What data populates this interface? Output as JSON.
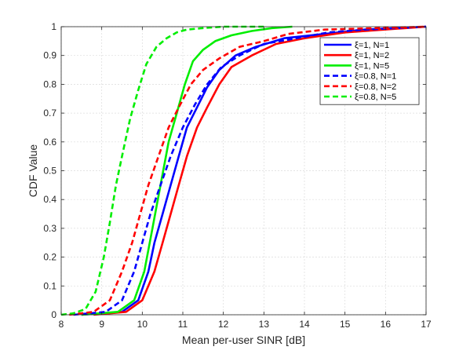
{
  "chart_data": {
    "type": "line",
    "title": "",
    "xlabel": "Mean per-user SINR [dB]",
    "ylabel": "CDF Value",
    "xlim": [
      8,
      17
    ],
    "ylim": [
      0,
      1
    ],
    "xticks": [
      "8",
      "9",
      "10",
      "11",
      "12",
      "13",
      "14",
      "15",
      "16",
      "17"
    ],
    "yticks": [
      "0",
      "0.1",
      "0.2",
      "0.3",
      "0.4",
      "0.5",
      "0.6",
      "0.7",
      "0.8",
      "0.9",
      "1"
    ],
    "grid": true,
    "legend_position": "top-right",
    "series": [
      {
        "name": "ξ=1, N=1",
        "color": "#0000ff",
        "dash": "solid",
        "x": [
          8.5,
          9.5,
          9.9,
          10.15,
          10.3,
          10.5,
          10.7,
          10.9,
          11.1,
          11.35,
          11.6,
          11.9,
          12.3,
          12.8,
          13.5,
          14.5,
          15.5,
          17
        ],
        "y": [
          0,
          0.01,
          0.05,
          0.15,
          0.25,
          0.35,
          0.45,
          0.55,
          0.65,
          0.72,
          0.79,
          0.85,
          0.9,
          0.93,
          0.96,
          0.975,
          0.99,
          1.0
        ]
      },
      {
        "name": "ξ=1, N=2",
        "color": "#ff0000",
        "dash": "solid",
        "x": [
          8.8,
          9.6,
          10.0,
          10.3,
          10.5,
          10.7,
          10.9,
          11.1,
          11.35,
          11.6,
          11.9,
          12.2,
          12.7,
          13.3,
          14.0,
          15.0,
          16.5,
          17
        ],
        "y": [
          0,
          0.01,
          0.05,
          0.15,
          0.25,
          0.35,
          0.45,
          0.55,
          0.65,
          0.72,
          0.8,
          0.86,
          0.9,
          0.94,
          0.96,
          0.98,
          0.995,
          1.0
        ]
      },
      {
        "name": "ξ=1, N=5",
        "color": "#00ee00",
        "dash": "solid",
        "x": [
          8.5,
          9.4,
          9.8,
          10.05,
          10.25,
          10.45,
          10.65,
          10.85,
          11.05,
          11.25,
          11.5,
          11.8,
          12.2,
          12.7,
          13.2,
          13.7
        ],
        "y": [
          0,
          0.01,
          0.05,
          0.15,
          0.3,
          0.45,
          0.6,
          0.7,
          0.8,
          0.88,
          0.92,
          0.95,
          0.97,
          0.985,
          0.995,
          1.0
        ]
      },
      {
        "name": "ξ=0.8, N=1",
        "color": "#0000ff",
        "dash": "dashed",
        "x": [
          8.3,
          9.1,
          9.5,
          9.8,
          10.0,
          10.2,
          10.45,
          10.7,
          11.0,
          11.3,
          11.6,
          11.95,
          12.4,
          13.0,
          13.8,
          14.6,
          15.5,
          17
        ],
        "y": [
          0,
          0.01,
          0.05,
          0.15,
          0.25,
          0.35,
          0.45,
          0.55,
          0.65,
          0.73,
          0.8,
          0.86,
          0.9,
          0.94,
          0.96,
          0.98,
          0.99,
          1.0
        ]
      },
      {
        "name": "ξ=0.8, N=2",
        "color": "#ff0000",
        "dash": "dashed",
        "x": [
          8.2,
          8.8,
          9.2,
          9.5,
          9.75,
          9.95,
          10.15,
          10.4,
          10.65,
          10.9,
          11.2,
          11.5,
          11.9,
          12.4,
          13.0,
          13.6,
          14.5,
          17
        ],
        "y": [
          0,
          0.01,
          0.05,
          0.15,
          0.25,
          0.35,
          0.45,
          0.55,
          0.65,
          0.72,
          0.8,
          0.85,
          0.89,
          0.93,
          0.95,
          0.975,
          0.99,
          1.0
        ]
      },
      {
        "name": "ξ=0.8, N=5",
        "color": "#00ee00",
        "dash": "dashed",
        "x": [
          8.0,
          8.3,
          8.6,
          8.85,
          9.05,
          9.2,
          9.35,
          9.5,
          9.7,
          9.9,
          10.1,
          10.35,
          10.6,
          10.85,
          11.1,
          11.5,
          12.0,
          13.0
        ],
        "y": [
          0,
          0.005,
          0.02,
          0.08,
          0.2,
          0.32,
          0.45,
          0.55,
          0.68,
          0.78,
          0.87,
          0.93,
          0.96,
          0.98,
          0.99,
          0.995,
          1.0,
          1.0
        ]
      }
    ]
  }
}
